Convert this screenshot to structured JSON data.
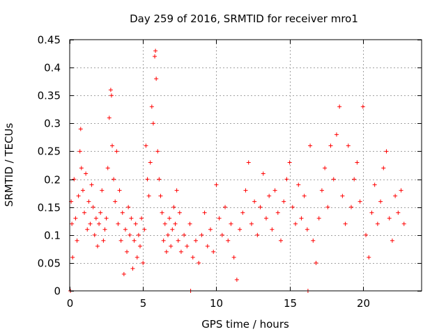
{
  "chart_data": {
    "type": "scatter",
    "title": "Day 259 of 2016, SRMTID for receiver mro1",
    "xlabel": "GPS time / hours",
    "ylabel": "SRMTID / TECUs",
    "xlim": [
      0,
      24
    ],
    "ylim": [
      0,
      0.45
    ],
    "x_ticks": [
      0,
      5,
      10,
      15,
      20
    ],
    "x_tick_labels": [
      "0",
      "5",
      "10",
      "15",
      "20"
    ],
    "y_ticks": [
      0,
      0.05,
      0.1,
      0.15,
      0.2,
      0.25,
      0.3,
      0.35,
      0.4,
      0.45
    ],
    "y_tick_labels": [
      "0",
      "0.05",
      "0.1",
      "0.15",
      "0.2",
      "0.25",
      "0.3",
      "0.35",
      "0.4",
      "0.45"
    ],
    "grid": true,
    "marker": "+",
    "marker_color": "#ff0000",
    "series": [
      {
        "name": "SRMTID",
        "points": [
          [
            0.1,
            0.16
          ],
          [
            0.15,
            0.12
          ],
          [
            0.2,
            0.06
          ],
          [
            0.3,
            0.2
          ],
          [
            0.4,
            0.13
          ],
          [
            0.5,
            0.09
          ],
          [
            0.6,
            0.17
          ],
          [
            0.7,
            0.25
          ],
          [
            0.75,
            0.29
          ],
          [
            0.8,
            0.22
          ],
          [
            0.9,
            0.18
          ],
          [
            1.0,
            0.14
          ],
          [
            1.1,
            0.21
          ],
          [
            1.2,
            0.11
          ],
          [
            1.3,
            0.16
          ],
          [
            1.4,
            0.12
          ],
          [
            1.5,
            0.19
          ],
          [
            1.6,
            0.15
          ],
          [
            1.7,
            0.1
          ],
          [
            1.8,
            0.13
          ],
          [
            1.9,
            0.08
          ],
          [
            2.0,
            0.12
          ],
          [
            2.1,
            0.14
          ],
          [
            2.2,
            0.18
          ],
          [
            2.3,
            0.09
          ],
          [
            2.4,
            0.11
          ],
          [
            2.5,
            0.13
          ],
          [
            2.6,
            0.22
          ],
          [
            2.7,
            0.31
          ],
          [
            2.8,
            0.36
          ],
          [
            2.85,
            0.35
          ],
          [
            2.9,
            0.26
          ],
          [
            3.0,
            0.2
          ],
          [
            3.1,
            0.16
          ],
          [
            3.2,
            0.25
          ],
          [
            3.3,
            0.12
          ],
          [
            3.4,
            0.18
          ],
          [
            3.5,
            0.09
          ],
          [
            3.6,
            0.14
          ],
          [
            3.7,
            0.03
          ],
          [
            3.8,
            0.11
          ],
          [
            3.9,
            0.07
          ],
          [
            4.0,
            0.15
          ],
          [
            4.1,
            0.1
          ],
          [
            4.2,
            0.13
          ],
          [
            4.3,
            0.04
          ],
          [
            4.4,
            0.09
          ],
          [
            4.5,
            0.12
          ],
          [
            4.6,
            0.06
          ],
          [
            4.7,
            0.1
          ],
          [
            4.8,
            0.08
          ],
          [
            4.9,
            0.13
          ],
          [
            5.0,
            0.05
          ],
          [
            5.1,
            0.11
          ],
          [
            5.2,
            0.26
          ],
          [
            5.3,
            0.2
          ],
          [
            5.4,
            0.17
          ],
          [
            5.5,
            0.23
          ],
          [
            5.6,
            0.33
          ],
          [
            5.7,
            0.3
          ],
          [
            5.8,
            0.42
          ],
          [
            5.85,
            0.43
          ],
          [
            5.9,
            0.38
          ],
          [
            6.0,
            0.25
          ],
          [
            6.1,
            0.2
          ],
          [
            6.2,
            0.17
          ],
          [
            6.3,
            0.14
          ],
          [
            6.4,
            0.09
          ],
          [
            6.5,
            0.12
          ],
          [
            6.6,
            0.07
          ],
          [
            6.7,
            0.1
          ],
          [
            6.8,
            0.13
          ],
          [
            6.9,
            0.08
          ],
          [
            7.0,
            0.11
          ],
          [
            7.1,
            0.15
          ],
          [
            7.2,
            0.12
          ],
          [
            7.3,
            0.18
          ],
          [
            7.4,
            0.09
          ],
          [
            7.5,
            0.14
          ],
          [
            7.6,
            0.07
          ],
          [
            7.8,
            0.1
          ],
          [
            8.0,
            0.08
          ],
          [
            8.2,
            0.12
          ],
          [
            8.4,
            0.06
          ],
          [
            8.6,
            0.09
          ],
          [
            8.8,
            0.05
          ],
          [
            9.0,
            0.1
          ],
          [
            9.2,
            0.14
          ],
          [
            9.4,
            0.08
          ],
          [
            9.6,
            0.11
          ],
          [
            9.8,
            0.07
          ],
          [
            10.0,
            0.19
          ],
          [
            10.2,
            0.13
          ],
          [
            10.4,
            0.1
          ],
          [
            10.6,
            0.15
          ],
          [
            10.8,
            0.09
          ],
          [
            11.0,
            0.12
          ],
          [
            11.2,
            0.06
          ],
          [
            11.4,
            0.02
          ],
          [
            11.6,
            0.11
          ],
          [
            11.8,
            0.14
          ],
          [
            12.0,
            0.18
          ],
          [
            12.2,
            0.23
          ],
          [
            12.4,
            0.12
          ],
          [
            12.6,
            0.16
          ],
          [
            12.8,
            0.1
          ],
          [
            13.0,
            0.15
          ],
          [
            13.2,
            0.21
          ],
          [
            13.4,
            0.13
          ],
          [
            13.6,
            0.17
          ],
          [
            13.8,
            0.11
          ],
          [
            14.0,
            0.18
          ],
          [
            14.2,
            0.14
          ],
          [
            14.4,
            0.09
          ],
          [
            14.6,
            0.16
          ],
          [
            14.8,
            0.2
          ],
          [
            15.0,
            0.23
          ],
          [
            15.2,
            0.15
          ],
          [
            15.4,
            0.12
          ],
          [
            15.6,
            0.19
          ],
          [
            15.8,
            0.13
          ],
          [
            16.0,
            0.17
          ],
          [
            16.2,
            0.11
          ],
          [
            16.4,
            0.26
          ],
          [
            16.6,
            0.09
          ],
          [
            16.8,
            0.05
          ],
          [
            17.0,
            0.13
          ],
          [
            17.2,
            0.18
          ],
          [
            17.4,
            0.22
          ],
          [
            17.6,
            0.15
          ],
          [
            17.8,
            0.26
          ],
          [
            18.0,
            0.2
          ],
          [
            18.2,
            0.28
          ],
          [
            18.4,
            0.33
          ],
          [
            18.6,
            0.17
          ],
          [
            18.8,
            0.12
          ],
          [
            19.0,
            0.26
          ],
          [
            19.2,
            0.15
          ],
          [
            19.4,
            0.2
          ],
          [
            19.6,
            0.23
          ],
          [
            19.8,
            0.16
          ],
          [
            20.0,
            0.33
          ],
          [
            20.2,
            0.1
          ],
          [
            20.4,
            0.06
          ],
          [
            20.6,
            0.14
          ],
          [
            20.8,
            0.19
          ],
          [
            21.0,
            0.12
          ],
          [
            21.2,
            0.16
          ],
          [
            21.4,
            0.22
          ],
          [
            21.6,
            0.25
          ],
          [
            21.8,
            0.13
          ],
          [
            22.0,
            0.09
          ],
          [
            22.2,
            0.17
          ],
          [
            22.4,
            0.14
          ],
          [
            22.6,
            0.18
          ],
          [
            22.8,
            0.12
          ],
          [
            0.05,
            0.0
          ],
          [
            8.25,
            0.0
          ],
          [
            16.25,
            0.0
          ]
        ]
      }
    ]
  }
}
